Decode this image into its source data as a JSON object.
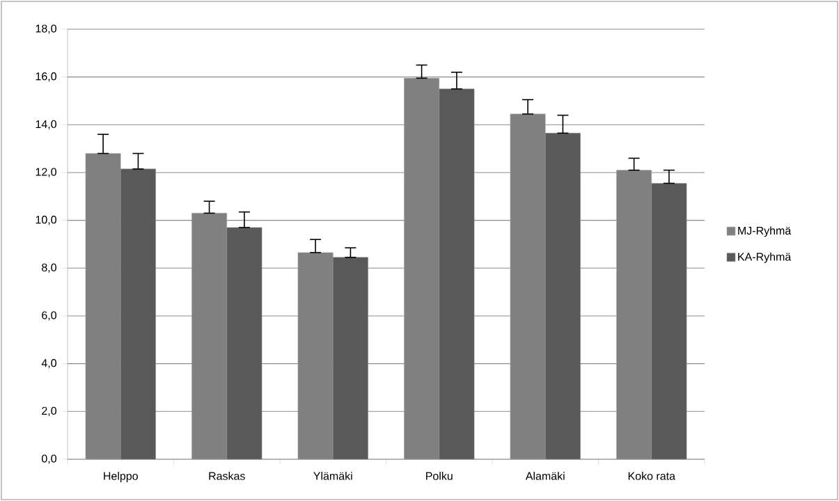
{
  "chart_data": {
    "type": "bar",
    "categories": [
      "Helppo",
      "Raskas",
      "Ylämäki",
      "Polku",
      "Alamäki",
      "Koko rata"
    ],
    "series": [
      {
        "name": "MJ-Ryhmä",
        "color": "#808080",
        "values": [
          12.8,
          10.3,
          8.65,
          15.95,
          14.45,
          12.1
        ],
        "errors": [
          [
            12.8,
            13.6
          ],
          [
            10.3,
            10.8
          ],
          [
            8.65,
            9.2
          ],
          [
            15.95,
            16.5
          ],
          [
            14.45,
            15.05
          ],
          [
            12.1,
            12.6
          ]
        ]
      },
      {
        "name": "KA-Ryhmä",
        "color": "#595959",
        "values": [
          12.15,
          9.7,
          8.45,
          15.5,
          13.65,
          11.55
        ],
        "errors": [
          [
            12.15,
            12.8
          ],
          [
            9.7,
            10.35
          ],
          [
            8.45,
            8.85
          ],
          [
            15.5,
            16.2
          ],
          [
            13.65,
            14.4
          ],
          [
            11.55,
            12.1
          ]
        ]
      }
    ],
    "ylim": [
      0,
      18
    ],
    "yticks": [
      {
        "value": 0,
        "label": "0,0"
      },
      {
        "value": 2,
        "label": "2,0"
      },
      {
        "value": 4,
        "label": "4,0"
      },
      {
        "value": 6,
        "label": "6,0"
      },
      {
        "value": 8,
        "label": "8,0"
      },
      {
        "value": 10,
        "label": "10,0"
      },
      {
        "value": 12,
        "label": "12,0"
      },
      {
        "value": 14,
        "label": "14,0"
      },
      {
        "value": 16,
        "label": "16,0"
      },
      {
        "value": 18,
        "label": "18,0"
      }
    ],
    "grid": "y",
    "legend": "right"
  }
}
